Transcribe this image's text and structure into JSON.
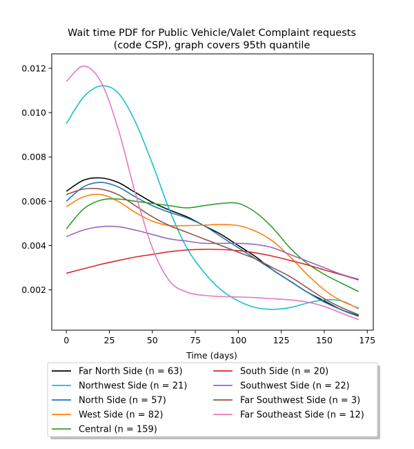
{
  "chart_data": {
    "type": "line",
    "title_line1": "Wait time PDF for Public Vehicle/Valet Complaint  requests",
    "title_line2": "(code CSP), graph covers 95th quantile",
    "xlabel": "Time (days)",
    "ylabel": "",
    "xlim": [
      -8.5,
      178.5
    ],
    "ylim": [
      0.00018,
      0.01265
    ],
    "xticks": [
      0,
      25,
      50,
      75,
      100,
      125,
      150,
      175
    ],
    "yticks": [
      0.002,
      0.004,
      0.006,
      0.008,
      0.01,
      0.012
    ],
    "ytick_labels": [
      "0.002",
      "0.004",
      "0.006",
      "0.008",
      "0.010",
      "0.012"
    ],
    "grid": false,
    "legend_position": "below plot, two columns",
    "x": [
      0,
      10,
      20,
      30,
      40,
      50,
      60,
      70,
      80,
      90,
      100,
      110,
      120,
      130,
      140,
      150,
      160,
      170
    ],
    "series": [
      {
        "name": "Far North Side (n = 63)",
        "color": "#000000",
        "values": [
          0.00645,
          0.00695,
          0.00705,
          0.00685,
          0.0064,
          0.00595,
          0.0056,
          0.0053,
          0.0049,
          0.0045,
          0.004,
          0.0035,
          0.0029,
          0.0024,
          0.0019,
          0.0015,
          0.0011,
          0.00082
        ]
      },
      {
        "name": "Northwest Side (n = 21)",
        "color": "#17becf",
        "values": [
          0.0095,
          0.0107,
          0.0112,
          0.0109,
          0.0096,
          0.0077,
          0.0056,
          0.0039,
          0.0028,
          0.002,
          0.0015,
          0.0012,
          0.00112,
          0.0012,
          0.0014,
          0.00155,
          0.0015,
          0.00115
        ]
      },
      {
        "name": "North Side (n = 57)",
        "color": "#1f77b4",
        "values": [
          0.006,
          0.00665,
          0.00685,
          0.00665,
          0.0062,
          0.0058,
          0.0055,
          0.00525,
          0.0049,
          0.0044,
          0.0039,
          0.0034,
          0.0029,
          0.0024,
          0.0019,
          0.00145,
          0.0011,
          0.00085
        ]
      },
      {
        "name": "West Side (n = 82)",
        "color": "#ff7f0e",
        "values": [
          0.00575,
          0.0062,
          0.0063,
          0.006,
          0.0055,
          0.0051,
          0.0049,
          0.0049,
          0.00492,
          0.00495,
          0.0049,
          0.00465,
          0.0042,
          0.0035,
          0.0027,
          0.002,
          0.0015,
          0.00118
        ]
      },
      {
        "name": "Central (n = 159)",
        "color": "#2ca02c",
        "values": [
          0.00475,
          0.00565,
          0.00605,
          0.0061,
          0.006,
          0.0059,
          0.0058,
          0.0057,
          0.0058,
          0.0059,
          0.0059,
          0.0055,
          0.0048,
          0.0039,
          0.0032,
          0.0027,
          0.0023,
          0.00192
        ]
      },
      {
        "name": "South Side (n = 20)",
        "color": "#d62728",
        "values": [
          0.00275,
          0.00295,
          0.00315,
          0.00332,
          0.00348,
          0.0036,
          0.00372,
          0.0038,
          0.00383,
          0.00382,
          0.00377,
          0.00367,
          0.00352,
          0.00333,
          0.00313,
          0.0029,
          0.00268,
          0.00245
        ]
      },
      {
        "name": "Southwest Side (n = 22)",
        "color": "#9467bd",
        "values": [
          0.0044,
          0.0047,
          0.00485,
          0.00485,
          0.0047,
          0.0045,
          0.0043,
          0.0042,
          0.0041,
          0.0041,
          0.0041,
          0.00405,
          0.0039,
          0.0036,
          0.0033,
          0.003,
          0.0027,
          0.00248
        ]
      },
      {
        "name": "Far Southwest Side (n = 3)",
        "color": "#8c564b",
        "values": [
          0.0063,
          0.00655,
          0.00655,
          0.0063,
          0.0058,
          0.0053,
          0.0049,
          0.0046,
          0.0043,
          0.004,
          0.0037,
          0.0034,
          0.003,
          0.0026,
          0.0021,
          0.0016,
          0.0012,
          0.00088
        ]
      },
      {
        "name": "Far Southeast Side (n = 12)",
        "color": "#e377c2",
        "values": [
          0.0114,
          0.0121,
          0.0114,
          0.0093,
          0.0064,
          0.0039,
          0.0024,
          0.0019,
          0.00175,
          0.0017,
          0.00168,
          0.00165,
          0.0016,
          0.00155,
          0.00145,
          0.00125,
          0.00095,
          0.00065
        ]
      }
    ]
  }
}
